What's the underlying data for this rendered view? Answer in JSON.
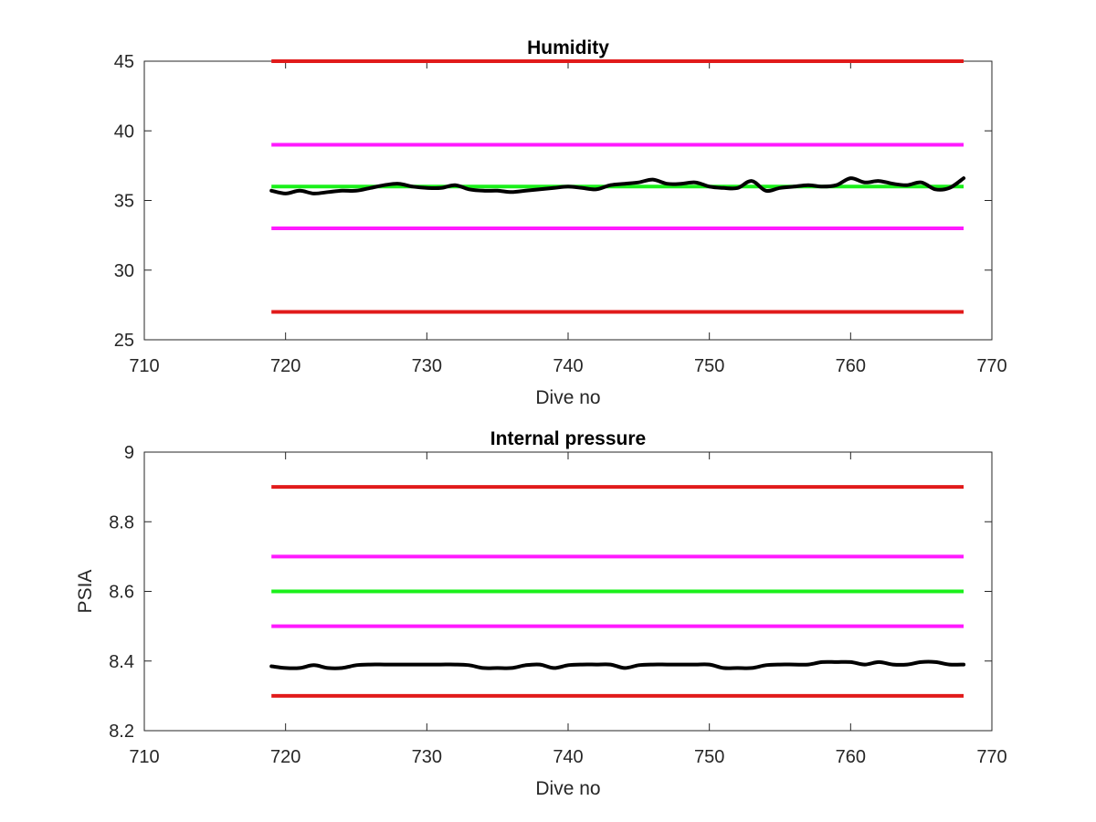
{
  "chart_data": [
    {
      "type": "line",
      "title": "Humidity",
      "xlabel": "Dive no",
      "ylabel": "",
      "xlim": [
        710,
        770
      ],
      "ylim": [
        25,
        45
      ],
      "xticks": [
        710,
        720,
        730,
        740,
        750,
        760,
        770
      ],
      "yticks": [
        25,
        30,
        35,
        40,
        45
      ],
      "xtick_labels": [
        "710",
        "720",
        "730",
        "740",
        "750",
        "760",
        "770"
      ],
      "ytick_labels": [
        "25",
        "30",
        "35",
        "40",
        "45"
      ],
      "grid": false,
      "colors": {
        "limit": "#e11a1a",
        "warning": "#ff1aff",
        "target": "#1af01a",
        "measured": "#000000"
      },
      "reference_lines": [
        {
          "role": "limit",
          "y": 45,
          "x": [
            719,
            768
          ]
        },
        {
          "role": "warning",
          "y": 39,
          "x": [
            719,
            768
          ]
        },
        {
          "role": "target",
          "y": 36,
          "x": [
            719,
            768
          ]
        },
        {
          "role": "warning",
          "y": 33,
          "x": [
            719,
            768
          ]
        },
        {
          "role": "limit",
          "y": 27,
          "x": [
            719,
            768
          ]
        }
      ],
      "series": [
        {
          "x": [
            719,
            720,
            721,
            722,
            723,
            724,
            725,
            726,
            727,
            728,
            729,
            730,
            731,
            732,
            733,
            734,
            735,
            736,
            737,
            738,
            739,
            740,
            741,
            742,
            743,
            744,
            745,
            746,
            747,
            748,
            749,
            750,
            751,
            752,
            753,
            754,
            755,
            756,
            757,
            758,
            759,
            760,
            761,
            762,
            763,
            764,
            765,
            766,
            767,
            768
          ],
          "y": [
            35.7,
            35.5,
            35.7,
            35.5,
            35.6,
            35.7,
            35.7,
            35.9,
            36.1,
            36.2,
            36.0,
            35.9,
            35.9,
            36.1,
            35.8,
            35.7,
            35.7,
            35.6,
            35.7,
            35.8,
            35.9,
            36.0,
            35.9,
            35.8,
            36.1,
            36.2,
            36.3,
            36.5,
            36.2,
            36.2,
            36.3,
            36.0,
            35.9,
            35.9,
            36.4,
            35.7,
            35.9,
            36.0,
            36.1,
            36.0,
            36.1,
            36.6,
            36.3,
            36.4,
            36.2,
            36.1,
            36.3,
            35.8,
            35.9,
            36.6
          ]
        }
      ]
    },
    {
      "type": "line",
      "title": "Internal pressure",
      "xlabel": "Dive no",
      "ylabel": "PSIA",
      "xlim": [
        710,
        770
      ],
      "ylim": [
        8.2,
        9.0
      ],
      "xticks": [
        710,
        720,
        730,
        740,
        750,
        760,
        770
      ],
      "yticks": [
        8.2,
        8.4,
        8.6,
        8.8,
        9.0
      ],
      "xtick_labels": [
        "710",
        "720",
        "730",
        "740",
        "750",
        "760",
        "770"
      ],
      "ytick_labels": [
        "8.2",
        "8.4",
        "8.6",
        "8.8",
        "9"
      ],
      "grid": false,
      "colors": {
        "limit": "#e11a1a",
        "warning": "#ff1aff",
        "target": "#1af01a",
        "measured": "#000000"
      },
      "reference_lines": [
        {
          "role": "limit",
          "y": 8.9,
          "x": [
            719,
            768
          ]
        },
        {
          "role": "warning",
          "y": 8.7,
          "x": [
            719,
            768
          ]
        },
        {
          "role": "target",
          "y": 8.6,
          "x": [
            719,
            768
          ]
        },
        {
          "role": "warning",
          "y": 8.5,
          "x": [
            719,
            768
          ]
        },
        {
          "role": "limit",
          "y": 8.3,
          "x": [
            719,
            768
          ]
        }
      ],
      "series": [
        {
          "x": [
            719,
            720,
            721,
            722,
            723,
            724,
            725,
            726,
            727,
            728,
            729,
            730,
            731,
            732,
            733,
            734,
            735,
            736,
            737,
            738,
            739,
            740,
            741,
            742,
            743,
            744,
            745,
            746,
            747,
            748,
            749,
            750,
            751,
            752,
            753,
            754,
            755,
            756,
            757,
            758,
            759,
            760,
            761,
            762,
            763,
            764,
            765,
            766,
            767,
            768
          ],
          "y": [
            8.385,
            8.38,
            8.38,
            8.388,
            8.38,
            8.38,
            8.388,
            8.39,
            8.39,
            8.39,
            8.39,
            8.39,
            8.39,
            8.39,
            8.388,
            8.38,
            8.38,
            8.38,
            8.388,
            8.39,
            8.38,
            8.388,
            8.39,
            8.39,
            8.39,
            8.38,
            8.388,
            8.39,
            8.39,
            8.39,
            8.39,
            8.39,
            8.38,
            8.38,
            8.38,
            8.388,
            8.39,
            8.39,
            8.39,
            8.397,
            8.397,
            8.397,
            8.39,
            8.397,
            8.39,
            8.39,
            8.397,
            8.397,
            8.39,
            8.39
          ]
        }
      ]
    }
  ]
}
